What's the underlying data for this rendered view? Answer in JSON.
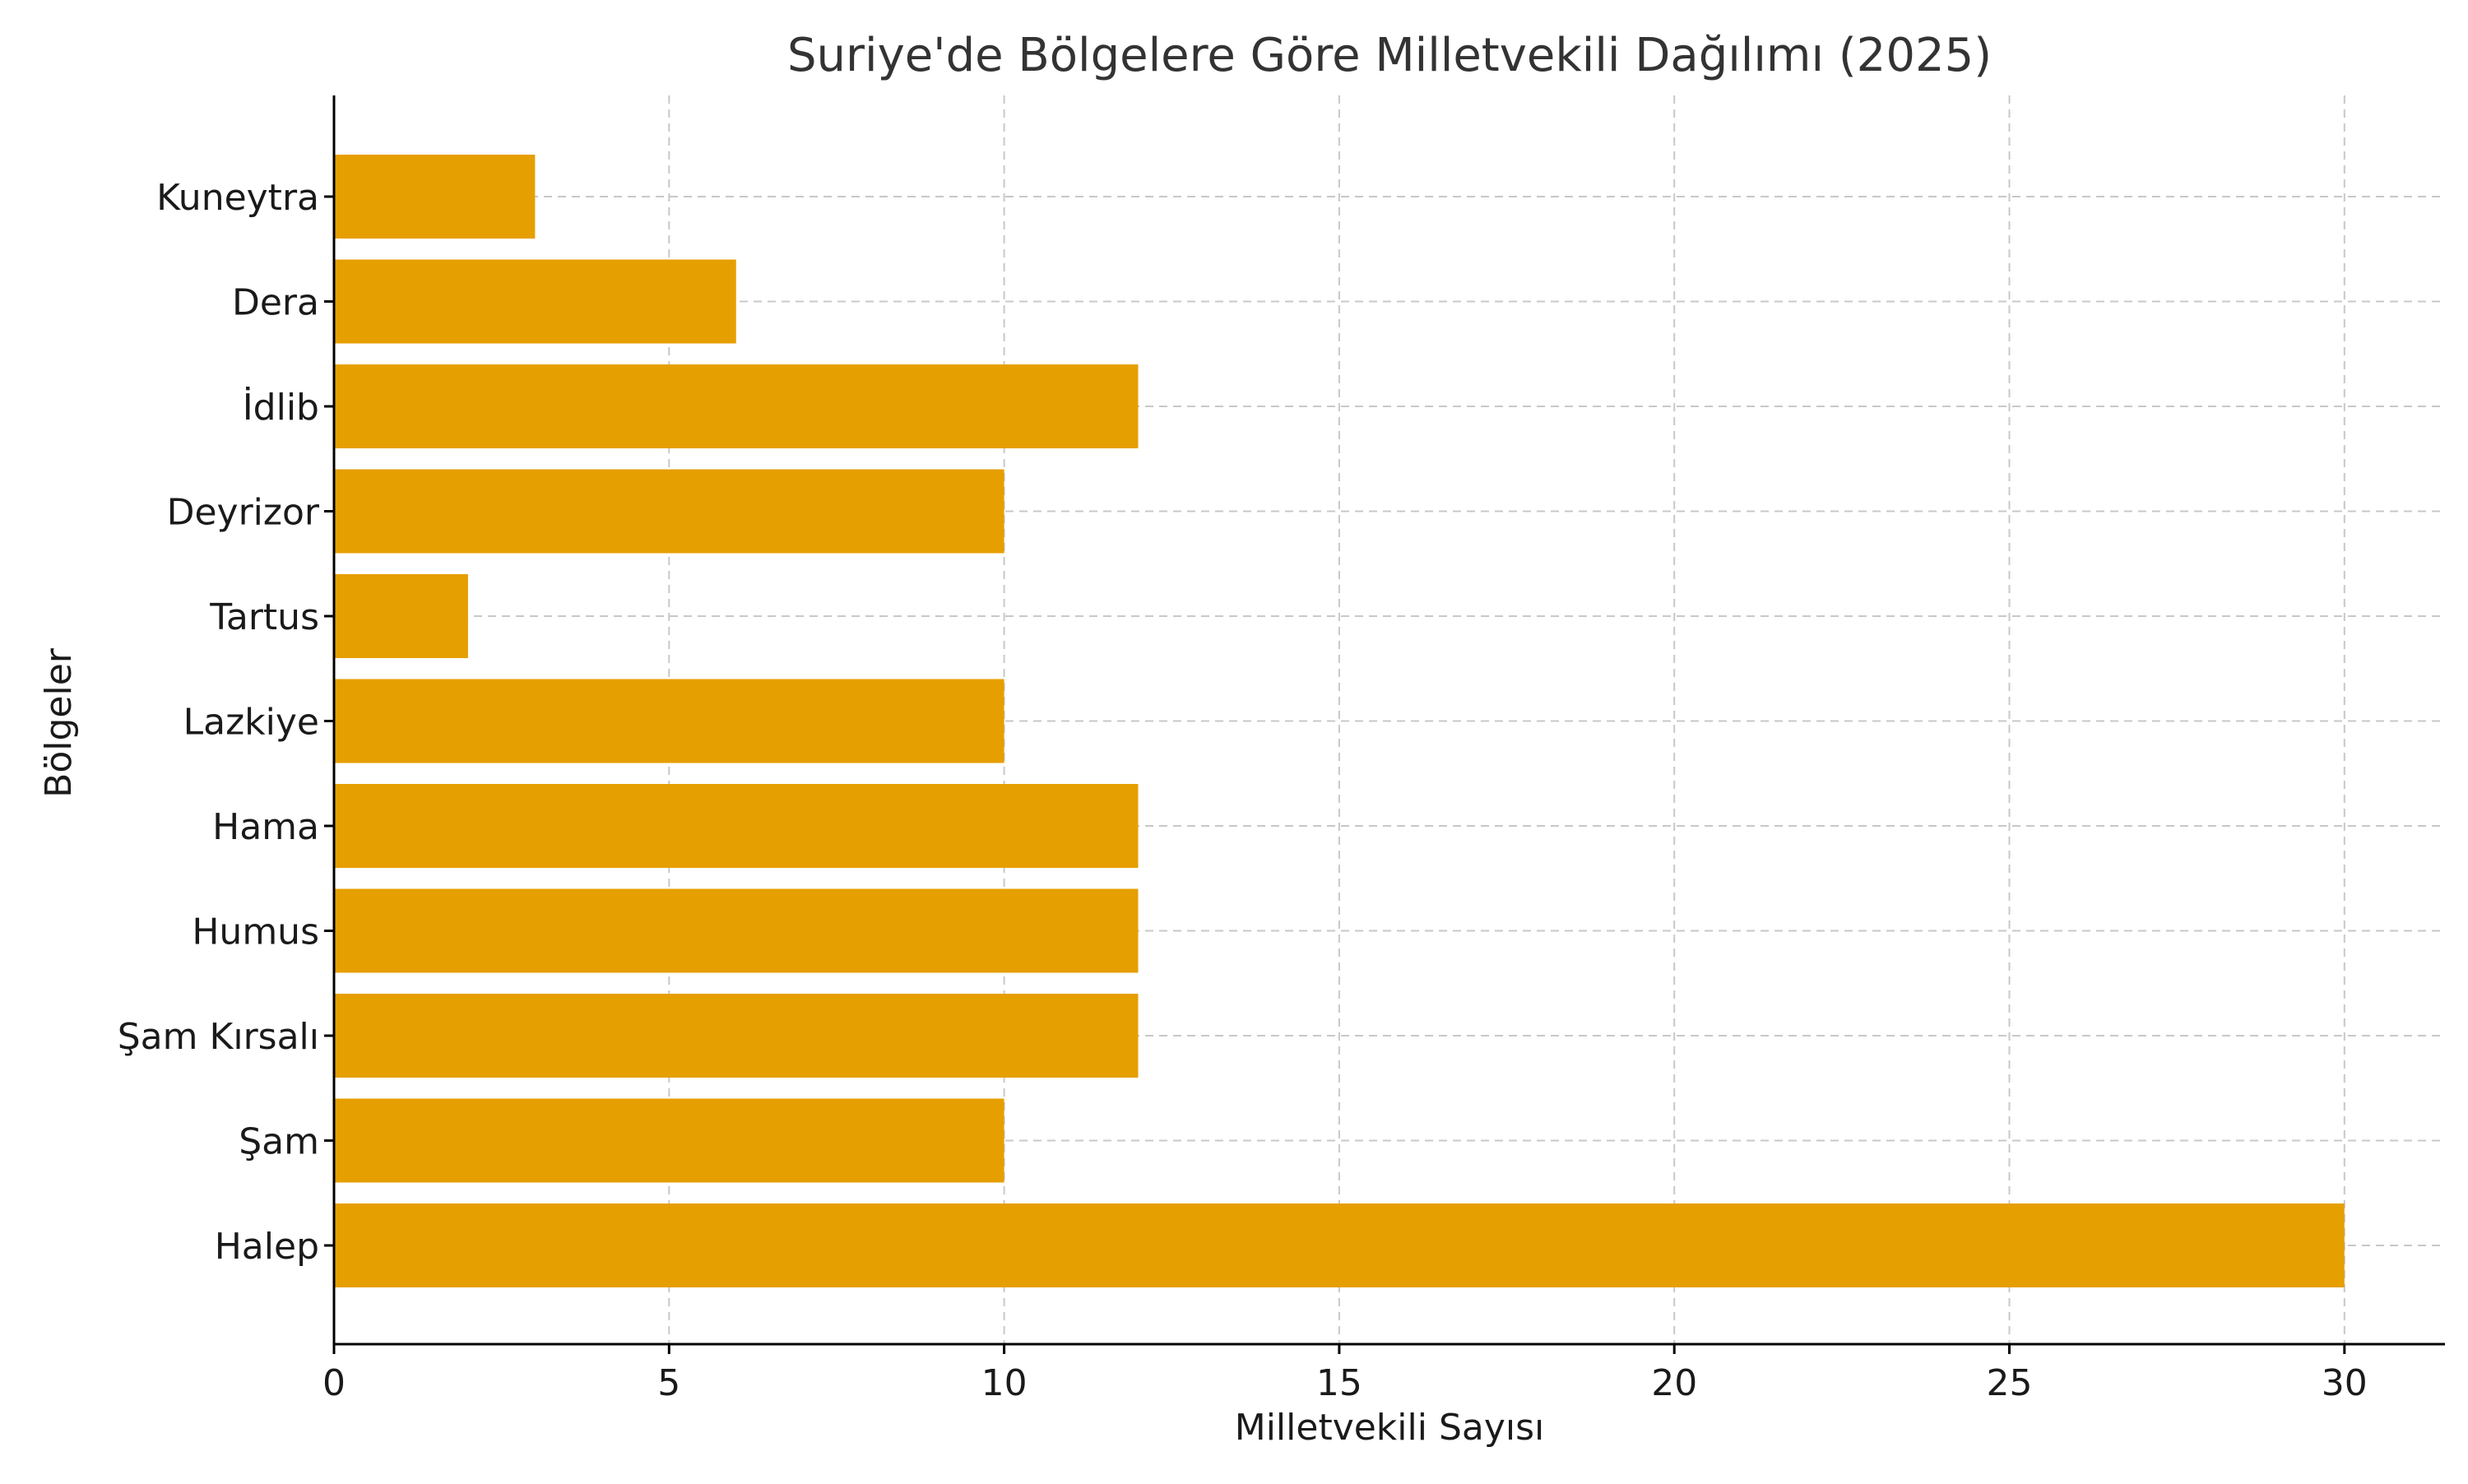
{
  "chart_data": {
    "type": "bar",
    "orientation": "horizontal",
    "title": "Suriye'de Bölgelere Göre Milletvekili Dağılımı (2025)",
    "xlabel": "Milletvekili Sayısı",
    "ylabel": "Bölgeler",
    "categories": [
      "Halep",
      "Şam",
      "Şam Kırsalı",
      "Humus",
      "Hama",
      "Lazkiye",
      "Tartus",
      "Deyrizor",
      "İdlib",
      "Dera",
      "Kuneytra"
    ],
    "values": [
      30,
      10,
      12,
      12,
      12,
      10,
      2,
      10,
      12,
      6,
      3
    ],
    "xlim": [
      0,
      31.5
    ],
    "xticks": [
      0,
      5,
      10,
      15,
      20,
      25,
      30
    ],
    "grid": true,
    "bar_color": "#E69F00"
  }
}
